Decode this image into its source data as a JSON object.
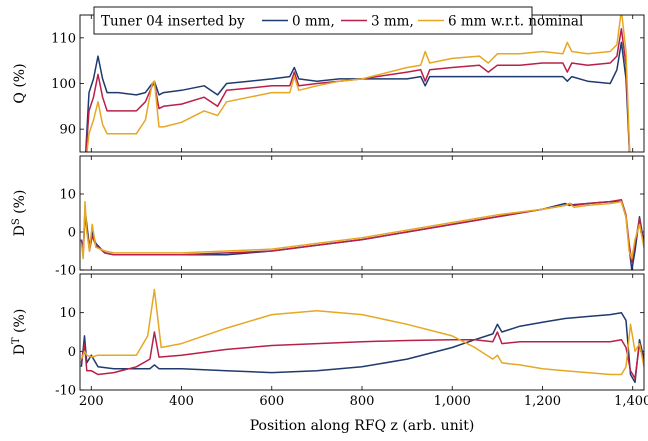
{
  "legend": {
    "prefix": "Tuner 04 inserted by",
    "items": [
      "0 mm,",
      "3 mm,",
      "6 mm w.r.t. nominal"
    ]
  },
  "chart_data": {
    "type": "line",
    "title": "",
    "xlabel": "Position along RFQ z (arb. unit)",
    "xlim": [
      175,
      1425
    ],
    "xticks": [
      200,
      400,
      600,
      800,
      1000,
      1200,
      1400
    ],
    "xticklabels": [
      "200",
      "400",
      "600",
      "800",
      "1,000",
      "1,200",
      "1,400"
    ],
    "colors": {
      "0 mm": "#1f3a6e",
      "3 mm": "#b8204a",
      "6 mm": "#e6a823"
    },
    "panels": [
      {
        "ylabel": "Q (%)",
        "ylim": [
          85,
          115
        ],
        "yticks": [
          90,
          100,
          110
        ],
        "series": [
          {
            "name": "0 mm",
            "x": [
              185,
              195,
              205,
              215,
              225,
              235,
              260,
              300,
              320,
              335,
              340,
              350,
              360,
              400,
              450,
              480,
              500,
              550,
              600,
              640,
              650,
              660,
              700,
              750,
              800,
              900,
              930,
              940,
              950,
              1000,
              1060,
              1080,
              1100,
              1150,
              1200,
              1245,
              1255,
              1265,
              1300,
              1350,
              1365,
              1375,
              1385,
              1395
            ],
            "y": [
              80,
              98,
              101,
              106,
              101,
              98,
              98,
              97.5,
              98,
              100,
              100.5,
              97.5,
              98,
              98.5,
              99.5,
              97.5,
              100,
              100.5,
              101,
              101.5,
              103.5,
              101,
              100.5,
              101,
              101,
              101,
              101.5,
              99.5,
              101.5,
              101.5,
              101.5,
              101.5,
              101.5,
              101.5,
              101.5,
              101.5,
              100.5,
              101.5,
              100.5,
              100,
              103,
              109,
              101,
              80
            ]
          },
          {
            "name": "3 mm",
            "x": [
              185,
              195,
              205,
              215,
              225,
              235,
              260,
              300,
              320,
              335,
              340,
              350,
              360,
              400,
              450,
              480,
              500,
              550,
              600,
              640,
              650,
              660,
              700,
              750,
              800,
              900,
              930,
              940,
              950,
              1000,
              1060,
              1080,
              1100,
              1150,
              1200,
              1245,
              1255,
              1265,
              1300,
              1350,
              1365,
              1375,
              1385,
              1395
            ],
            "y": [
              80,
              94,
              97,
              102,
              97,
              94,
              94,
              94,
              96,
              99.5,
              100,
              94.5,
              95,
              95.5,
              97,
              95,
              98.5,
              99,
              99.5,
              99.5,
              102.5,
              99.5,
              100,
              100.5,
              101,
              102.5,
              103,
              100.5,
              103,
              103.5,
              104,
              102.5,
              104,
              104,
              104.5,
              104.5,
              102.5,
              104.5,
              104,
              104.5,
              106,
              112,
              104,
              80
            ]
          },
          {
            "name": "6 mm",
            "x": [
              185,
              195,
              205,
              215,
              225,
              235,
              260,
              300,
              320,
              335,
              340,
              350,
              360,
              400,
              450,
              480,
              500,
              550,
              600,
              640,
              650,
              660,
              700,
              750,
              800,
              900,
              930,
              940,
              950,
              1000,
              1060,
              1080,
              1100,
              1150,
              1200,
              1245,
              1255,
              1265,
              1300,
              1350,
              1365,
              1375,
              1385,
              1395
            ],
            "y": [
              80,
              89,
              92,
              96,
              91,
              89,
              89,
              89,
              92,
              100,
              100.5,
              90.5,
              90.5,
              91.5,
              94,
              93,
              96,
              97,
              98,
              98,
              101.5,
              98.5,
              99.5,
              100.5,
              101,
              103.5,
              104,
              107,
              104.5,
              105.5,
              106,
              104.5,
              106.5,
              106.5,
              107,
              106.5,
              109,
              107,
              106.5,
              107,
              108.5,
              116,
              107,
              80
            ]
          }
        ]
      },
      {
        "ylabel": "DS (%)",
        "ylim": [
          -10,
          20
        ],
        "yticks": [
          -10,
          0,
          10
        ],
        "series": [
          {
            "name": "0 mm",
            "x": [
              178,
              182,
              186,
              190,
              196,
              202,
              210,
              230,
              250,
              300,
              400,
              500,
              600,
              700,
              800,
              900,
              1000,
              1100,
              1200,
              1250,
              1260,
              1270,
              1300,
              1350,
              1375,
              1385,
              1392,
              1398,
              1405,
              1415,
              1425
            ],
            "y": [
              -2,
              -5,
              6,
              2,
              -4,
              0,
              -3,
              -5.5,
              -6,
              -6,
              -6,
              -6,
              -5,
              -3.5,
              -2,
              0,
              2,
              4,
              6,
              7.5,
              7,
              7.2,
              7.5,
              8,
              8,
              4,
              -4,
              -10,
              -5,
              4,
              -3
            ]
          },
          {
            "name": "3 mm",
            "x": [
              178,
              182,
              186,
              190,
              196,
              202,
              210,
              230,
              250,
              300,
              400,
              500,
              600,
              700,
              800,
              900,
              1000,
              1100,
              1200,
              1250,
              1260,
              1270,
              1300,
              1350,
              1375,
              1385,
              1392,
              1398,
              1405,
              1415,
              1425
            ],
            "y": [
              -2,
              -6,
              4,
              1,
              -5,
              -1,
              -3.5,
              -5.5,
              -6,
              -6,
              -6,
              -5.5,
              -5,
              -3.5,
              -2,
              0,
              2,
              4,
              6,
              7,
              7.5,
              7,
              7.5,
              8,
              8.5,
              4.5,
              -3,
              -8,
              -3,
              3.5,
              -4
            ]
          },
          {
            "name": "6 mm",
            "x": [
              178,
              182,
              186,
              190,
              196,
              202,
              210,
              230,
              250,
              300,
              400,
              500,
              600,
              700,
              800,
              900,
              1000,
              1100,
              1200,
              1250,
              1260,
              1270,
              1300,
              1350,
              1375,
              1385,
              1392,
              1398,
              1405,
              1415,
              1425
            ],
            "y": [
              -3,
              -7,
              8,
              0,
              -5,
              2,
              -4,
              -5,
              -5.5,
              -5.5,
              -5.5,
              -5,
              -4.5,
              -3,
              -1.5,
              0.5,
              2.5,
              4.5,
              6,
              7,
              7.5,
              6.5,
              7,
              7.5,
              8,
              4,
              -5,
              -7,
              -2,
              2,
              -4
            ]
          }
        ]
      },
      {
        "ylabel": "DT (%)",
        "ylim": [
          -10,
          20
        ],
        "yticks": [
          -10,
          0,
          10
        ],
        "series": [
          {
            "name": "0 mm",
            "x": [
              178,
              185,
              190,
              200,
              215,
              250,
              300,
              330,
              340,
              350,
              400,
              500,
              600,
              700,
              800,
              900,
              1000,
              1050,
              1090,
              1100,
              1110,
              1150,
              1200,
              1250,
              1300,
              1350,
              1375,
              1385,
              1395,
              1405,
              1415,
              1425
            ],
            "y": [
              -4,
              4,
              -3,
              -1,
              -4,
              -4.5,
              -4.5,
              -4.5,
              -3.5,
              -4.5,
              -4.5,
              -5,
              -5.5,
              -5,
              -4,
              -2,
              1,
              3,
              4.5,
              7,
              5,
              6.5,
              7.5,
              8.5,
              9,
              9.5,
              10,
              8,
              -6,
              -8,
              3,
              -2
            ]
          },
          {
            "name": "3 mm",
            "x": [
              178,
              185,
              190,
              200,
              215,
              250,
              300,
              330,
              340,
              350,
              400,
              500,
              600,
              700,
              800,
              900,
              1000,
              1050,
              1090,
              1100,
              1110,
              1150,
              1200,
              1250,
              1300,
              1350,
              1375,
              1385,
              1395,
              1405,
              1415,
              1425
            ],
            "y": [
              -3,
              2,
              -5,
              -5,
              -6,
              -5.5,
              -4,
              -2,
              5,
              -1.5,
              -1,
              0.5,
              1.5,
              2,
              2.5,
              2.8,
              3,
              3,
              2.5,
              5,
              2,
              2.5,
              2.5,
              2.5,
              2.5,
              2.5,
              3,
              1,
              -5,
              -7,
              2,
              -3
            ]
          },
          {
            "name": "6 mm",
            "x": [
              178,
              185,
              190,
              200,
              215,
              250,
              300,
              325,
              340,
              355,
              400,
              500,
              600,
              700,
              800,
              900,
              1000,
              1050,
              1090,
              1100,
              1110,
              1150,
              1200,
              1250,
              1300,
              1350,
              1375,
              1385,
              1395,
              1405,
              1415,
              1425
            ],
            "y": [
              -2,
              0,
              -1,
              -1.5,
              -1,
              -1,
              -1,
              4,
              16,
              1,
              2,
              6,
              9.5,
              10.5,
              9.5,
              7,
              4,
              1,
              -2,
              -1,
              -3,
              -3.5,
              -4.5,
              -5,
              -5.5,
              -6,
              -6,
              -4,
              7,
              0,
              2,
              -4
            ]
          }
        ]
      }
    ]
  }
}
